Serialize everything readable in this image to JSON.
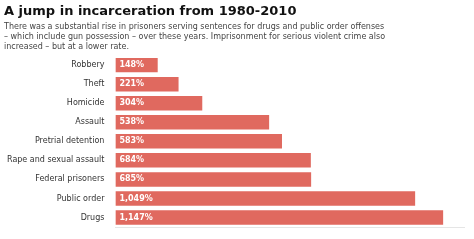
{
  "chart_data": {
    "type": "bar",
    "orientation": "horizontal",
    "title": "A jump in incarceration from 1980-2010",
    "subtitle": "There was a substantial rise in prisoners serving sentences for drugs and public order offenses\n– which include gun possession – over these years. Imprisonment for serious violent crime also\nincreased – but at a lower rate.",
    "categories": [
      "Robbery",
      "Theft",
      "Homicide",
      "Assault",
      "Pretrial detention",
      "Rape and sexual assault",
      "Federal prisoners",
      "Public order",
      "Drugs"
    ],
    "values": [
      148,
      221,
      304,
      538,
      583,
      684,
      685,
      1049,
      1147
    ],
    "value_labels": [
      "148%",
      "221%",
      "304%",
      "538%",
      "583%",
      "684%",
      "685%",
      "1,049%",
      "1,147%"
    ],
    "color": "#e0695f",
    "xlim": [
      0,
      1220
    ],
    "data_labels": true,
    "grid": false,
    "tick_labels": "y"
  }
}
